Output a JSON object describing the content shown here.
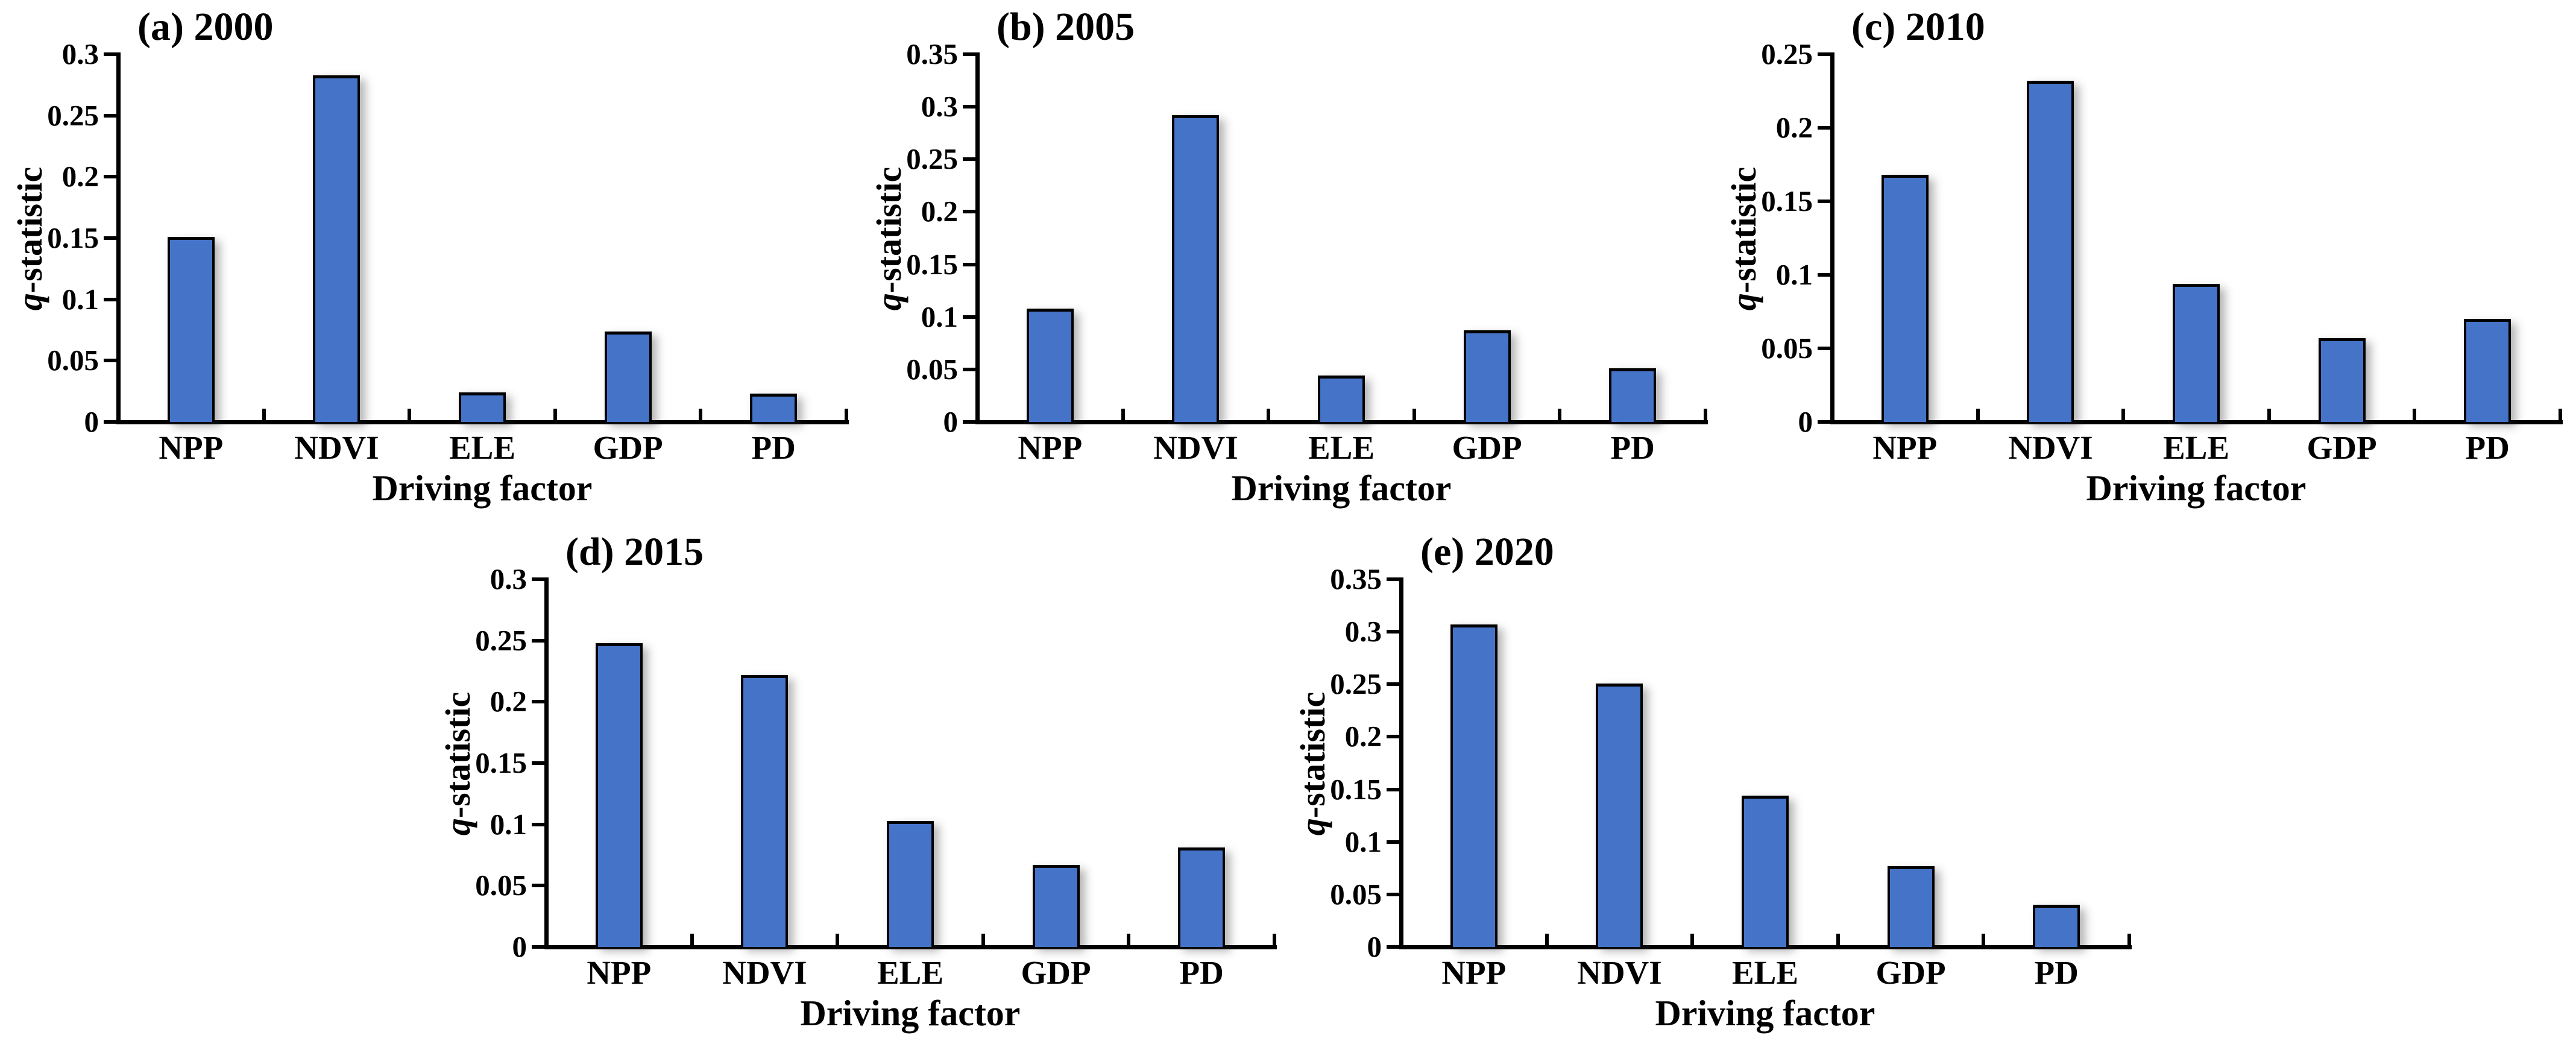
{
  "figure": {
    "background": "#ffffff",
    "bar_color": "#4573C8",
    "bar_border_color": "#000000",
    "axis_color": "#000000",
    "text_color": "#000000"
  },
  "chart_data": [
    {
      "type": "bar",
      "panel_label": "(a)",
      "year": "2000",
      "title": "(a) 2000",
      "xlabel": "Driving factor",
      "ylabel": "q-statistic",
      "ylabel_italic": "q",
      "ylabel_suffix": "-statistic",
      "categories": [
        "NPP",
        "NDVI",
        "ELE",
        "GDP",
        "PD"
      ],
      "values": [
        0.151,
        0.283,
        0.024,
        0.074,
        0.023
      ],
      "ylim": [
        0,
        0.3
      ],
      "ytick_step": 0.05,
      "yticks": [
        "0",
        "0.05",
        "0.1",
        "0.15",
        "0.2",
        "0.25",
        "0.3"
      ],
      "grid": false,
      "legend": "none"
    },
    {
      "type": "bar",
      "panel_label": "(b)",
      "year": "2005",
      "title": "(b) 2005",
      "xlabel": "Driving factor",
      "ylabel": "q-statistic",
      "ylabel_italic": "q",
      "ylabel_suffix": "-statistic",
      "categories": [
        "NPP",
        "NDVI",
        "ELE",
        "GDP",
        "PD"
      ],
      "values": [
        0.108,
        0.292,
        0.044,
        0.087,
        0.051
      ],
      "ylim": [
        0,
        0.35
      ],
      "ytick_step": 0.05,
      "yticks": [
        "0",
        "0.05",
        "0.1",
        "0.15",
        "0.2",
        "0.25",
        "0.3",
        "0.35"
      ],
      "grid": false,
      "legend": "none"
    },
    {
      "type": "bar",
      "panel_label": "(c)",
      "year": "2010",
      "title": "(c) 2010",
      "xlabel": "Driving factor",
      "ylabel": "q-statistic",
      "ylabel_italic": "q",
      "ylabel_suffix": "-statistic",
      "categories": [
        "NPP",
        "NDVI",
        "ELE",
        "GDP",
        "PD"
      ],
      "values": [
        0.168,
        0.232,
        0.094,
        0.057,
        0.07
      ],
      "ylim": [
        0,
        0.25
      ],
      "ytick_step": 0.05,
      "yticks": [
        "0",
        "0.05",
        "0.1",
        "0.15",
        "0.2",
        "0.25"
      ],
      "grid": false,
      "legend": "none"
    },
    {
      "type": "bar",
      "panel_label": "(d)",
      "year": "2015",
      "title": "(d) 2015",
      "xlabel": "Driving factor",
      "ylabel": "q-statistic",
      "ylabel_italic": "q",
      "ylabel_suffix": "-statistic",
      "categories": [
        "NPP",
        "NDVI",
        "ELE",
        "GDP",
        "PD"
      ],
      "values": [
        0.248,
        0.222,
        0.103,
        0.067,
        0.081
      ],
      "ylim": [
        0,
        0.3
      ],
      "ytick_step": 0.05,
      "yticks": [
        "0",
        "0.05",
        "0.1",
        "0.15",
        "0.2",
        "0.25",
        "0.3"
      ],
      "grid": false,
      "legend": "none"
    },
    {
      "type": "bar",
      "panel_label": "(e)",
      "year": "2020",
      "title": "(e) 2020",
      "xlabel": "Driving factor",
      "ylabel": "q-statistic",
      "ylabel_italic": "q",
      "ylabel_suffix": "-statistic",
      "categories": [
        "NPP",
        "NDVI",
        "ELE",
        "GDP",
        "PD"
      ],
      "values": [
        0.307,
        0.251,
        0.144,
        0.077,
        0.04
      ],
      "ylim": [
        0,
        0.35
      ],
      "ytick_step": 0.05,
      "yticks": [
        "0",
        "0.05",
        "0.1",
        "0.15",
        "0.2",
        "0.25",
        "0.3",
        "0.35"
      ],
      "grid": false,
      "legend": "none"
    }
  ]
}
